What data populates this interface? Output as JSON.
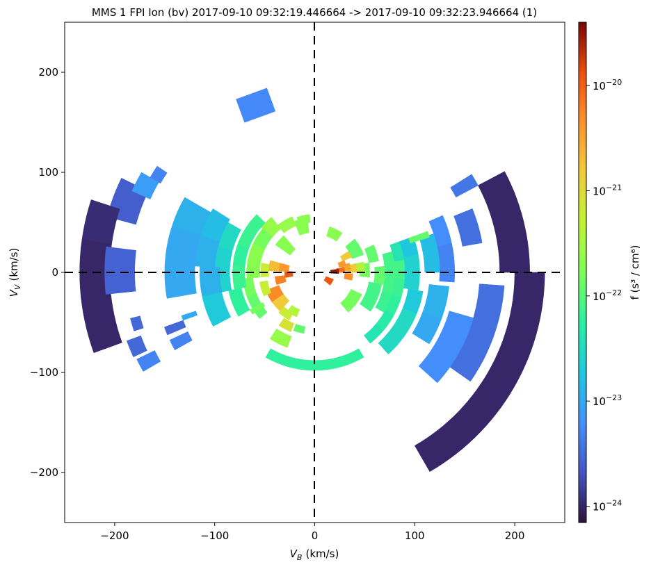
{
  "chart_data": {
    "type": "polar-distribution",
    "title": "MMS 1 FPI Ion (bv) 2017-09-10 09:32:19.446664 -> 2017-09-10 09:32:23.946664 (1)",
    "xlabel": {
      "base": "V",
      "sub": "B",
      "unit": "(km/s)"
    },
    "ylabel": {
      "base": "V",
      "sub": "V",
      "unit": "(km/s)"
    },
    "xlim": [
      -250,
      250
    ],
    "ylim": [
      -250,
      250
    ],
    "xticks": [
      {
        "value": -200,
        "label": "−200"
      },
      {
        "value": -100,
        "label": "−100"
      },
      {
        "value": 0,
        "label": "0"
      },
      {
        "value": 100,
        "label": "100"
      },
      {
        "value": 200,
        "label": "200"
      }
    ],
    "yticks": [
      {
        "value": 200,
        "label": "200"
      },
      {
        "value": 100,
        "label": "100"
      },
      {
        "value": 0,
        "label": "0"
      },
      {
        "value": -100,
        "label": "−100"
      },
      {
        "value": -200,
        "label": "−200"
      }
    ],
    "zero_lines": true,
    "colorbar": {
      "label": "f (s³ / cm⁶)",
      "scale": "log",
      "range": [
        7e-25,
        4e-20
      ],
      "ticks": [
        {
          "value": 1e-24,
          "base": "10",
          "exp": "−24"
        },
        {
          "value": 1e-23,
          "base": "10",
          "exp": "−23"
        },
        {
          "value": 1e-22,
          "base": "10",
          "exp": "−22"
        },
        {
          "value": 1e-21,
          "base": "10",
          "exp": "−21"
        },
        {
          "value": 1e-20,
          "base": "10",
          "exp": "−20"
        }
      ]
    },
    "cells": [
      {
        "r": [
          200,
          230
        ],
        "theta": [
          -60,
          -30
        ],
        "f": 1e-24
      },
      {
        "r": [
          200,
          230
        ],
        "theta": [
          -30,
          0
        ],
        "f": 1e-24
      },
      {
        "r": [
          185,
          215
        ],
        "theta": [
          0,
          28
        ],
        "f": 1e-24
      },
      {
        "r": [
          185,
          215
        ],
        "theta": [
          154,
          165
        ],
        "f": 2.5e-24
      },
      {
        "r": [
          205,
          235
        ],
        "theta": [
          162,
          172
        ],
        "f": 1.1e-24
      },
      {
        "r": [
          205,
          235
        ],
        "theta": [
          172,
          186
        ],
        "f": 1e-24
      },
      {
        "r": [
          205,
          235
        ],
        "theta": [
          186,
          200
        ],
        "f": 1e-24
      },
      {
        "r": [
          180,
          210
        ],
        "theta": [
          173,
          186
        ],
        "f": 2.7e-24
      },
      {
        "r": [
          165,
          190
        ],
        "theta": [
          -35,
          -18
        ],
        "f": 3.5e-24
      },
      {
        "r": [
          165,
          190
        ],
        "theta": [
          -18,
          -4
        ],
        "f": 3.5e-24
      },
      {
        "r": [
          150,
          170
        ],
        "theta": [
          10,
          22
        ],
        "f": 3.5e-24
      },
      {
        "r": [
          140,
          165
        ],
        "theta": [
          -42,
          -30
        ],
        "f": 6e-24
      },
      {
        "r": [
          140,
          165
        ],
        "theta": [
          -30,
          -16
        ],
        "f": 6e-24
      },
      {
        "r": [
          125,
          140
        ],
        "theta": [
          -4,
          12
        ],
        "f": 5e-24
      },
      {
        "r": [
          125,
          140
        ],
        "theta": [
          12,
          24
        ],
        "f": 6e-24
      },
      {
        "r": [
          115,
          135
        ],
        "theta": [
          -32,
          -20
        ],
        "f": 1e-23
      },
      {
        "r": [
          115,
          135
        ],
        "theta": [
          -20,
          -6
        ],
        "f": 1.2e-23
      },
      {
        "r": [
          110,
          125
        ],
        "theta": [
          0,
          10
        ],
        "f": 1.5e-23
      },
      {
        "r": [
          110,
          125
        ],
        "theta": [
          10,
          18
        ],
        "f": 1.5e-23
      },
      {
        "r": [
          95,
          110
        ],
        "theta": [
          -48,
          -36
        ],
        "f": 3e-23
      },
      {
        "r": [
          95,
          110
        ],
        "theta": [
          -36,
          -22
        ],
        "f": 3e-23
      },
      {
        "r": [
          95,
          110
        ],
        "theta": [
          -22,
          -10
        ],
        "f": 2e-23
      },
      {
        "r": [
          90,
          105
        ],
        "theta": [
          -10,
          0
        ],
        "f": 2.5e-23
      },
      {
        "r": [
          90,
          105
        ],
        "theta": [
          0,
          10
        ],
        "f": 2.5e-23
      },
      {
        "r": [
          90,
          105
        ],
        "theta": [
          10,
          20
        ],
        "f": 1.8e-23
      },
      {
        "r": [
          80,
          90
        ],
        "theta": [
          -52,
          -40
        ],
        "f": 4e-23
      },
      {
        "r": [
          80,
          90
        ],
        "theta": [
          -40,
          -28
        ],
        "f": 5e-23
      },
      {
        "r": [
          80,
          90
        ],
        "theta": [
          -28,
          -16
        ],
        "f": 6e-23
      },
      {
        "r": [
          80,
          90
        ],
        "theta": [
          -16,
          -4
        ],
        "f": 7e-23
      },
      {
        "r": [
          80,
          90
        ],
        "theta": [
          -4,
          8
        ],
        "f": 8e-23
      },
      {
        "r": [
          80,
          90
        ],
        "theta": [
          8,
          20
        ],
        "f": 4e-23
      },
      {
        "r": [
          88,
          98
        ],
        "theta": [
          -120,
          -90
        ],
        "f": 6e-23
      },
      {
        "r": [
          88,
          98
        ],
        "theta": [
          -90,
          -60
        ],
        "f": 6e-23
      },
      {
        "r": [
          70,
          80
        ],
        "theta": [
          -30,
          -15
        ],
        "f": 7e-23
      },
      {
        "r": [
          70,
          80
        ],
        "theta": [
          -15,
          0
        ],
        "f": 8e-23
      },
      {
        "r": [
          70,
          80
        ],
        "theta": [
          0,
          15
        ],
        "f": 8e-23
      },
      {
        "r": [
          60,
          70
        ],
        "theta": [
          -10,
          5
        ],
        "f": 1.2e-22
      },
      {
        "r": [
          55,
          68
        ],
        "theta": [
          -35,
          -10
        ],
        "f": 8e-23
      },
      {
        "r": [
          55,
          65
        ],
        "theta": [
          10,
          25
        ],
        "f": 1.2e-22
      },
      {
        "r": [
          45,
          55
        ],
        "theta": [
          -5,
          10
        ],
        "f": 1.5e-22
      },
      {
        "r": [
          40,
          52
        ],
        "theta": [
          -50,
          -25
        ],
        "f": 1.5e-22
      },
      {
        "r": [
          40,
          52
        ],
        "theta": [
          20,
          40
        ],
        "f": 1.2e-22
      },
      {
        "r": [
          38,
          48
        ],
        "theta": [
          55,
          72
        ],
        "f": 2e-22
      },
      {
        "r": [
          40,
          50
        ],
        "theta": [
          0,
          12
        ],
        "f": 4e-22
      },
      {
        "r": [
          33,
          42
        ],
        "theta": [
          0,
          12
        ],
        "f": 1.5e-21
      },
      {
        "r": [
          28,
          36
        ],
        "theta": [
          3,
          15
        ],
        "f": 3e-21
      },
      {
        "r": [
          22,
          30
        ],
        "theta": [
          0,
          10
        ],
        "f": 8e-21
      },
      {
        "r": [
          16,
          24
        ],
        "theta": [
          -3,
          8
        ],
        "f": 3e-20
      },
      {
        "r": [
          30,
          40
        ],
        "theta": [
          22,
          32
        ],
        "f": 1.5e-21
      },
      {
        "r": [
          25,
          32
        ],
        "theta": [
          12,
          22
        ],
        "f": 4e-21
      },
      {
        "r": [
          30,
          38
        ],
        "theta": [
          -12,
          -2
        ],
        "f": 5e-21
      },
      {
        "r": [
          12,
          20
        ],
        "theta": [
          -40,
          -20
        ],
        "f": 1.2e-20
      },
      {
        "r": [
          30,
          48
        ],
        "theta": [
          130,
          145
        ],
        "f": 2e-22
      },
      {
        "r": [
          40,
          55
        ],
        "theta": [
          98,
          112
        ],
        "f": 2e-22
      },
      {
        "r": [
          50,
          60
        ],
        "theta": [
          112,
          128
        ],
        "f": 2.5e-22
      },
      {
        "r": [
          55,
          70
        ],
        "theta": [
          128,
          140
        ],
        "f": 2.5e-22
      },
      {
        "r": [
          50,
          58
        ],
        "theta": [
          95,
          108
        ],
        "f": 2e-22
      },
      {
        "r": [
          55,
          68
        ],
        "theta": [
          140,
          155
        ],
        "f": 1.5e-22
      },
      {
        "r": [
          55,
          68
        ],
        "theta": [
          155,
          170
        ],
        "f": 2e-22
      },
      {
        "r": [
          55,
          68
        ],
        "theta": [
          170,
          185
        ],
        "f": 2e-22
      },
      {
        "r": [
          62,
          72
        ],
        "theta": [
          185,
          200
        ],
        "f": 1.5e-22
      },
      {
        "r": [
          62,
          72
        ],
        "theta": [
          200,
          220
        ],
        "f": 1.2e-22
      },
      {
        "r": [
          70,
          82
        ],
        "theta": [
          135,
          160
        ],
        "f": 7e-23
      },
      {
        "r": [
          70,
          82
        ],
        "theta": [
          160,
          175
        ],
        "f": 6e-23
      },
      {
        "r": [
          70,
          82
        ],
        "theta": [
          175,
          192
        ],
        "f": 7e-23
      },
      {
        "r": [
          75,
          88
        ],
        "theta": [
          192,
          210
        ],
        "f": 6e-23
      },
      {
        "r": [
          85,
          100
        ],
        "theta": [
          150,
          165
        ],
        "f": 3e-23
      },
      {
        "r": [
          85,
          100
        ],
        "theta": [
          165,
          178
        ],
        "f": 2.5e-23
      },
      {
        "r": [
          85,
          100
        ],
        "theta": [
          178,
          192
        ],
        "f": 2.5e-23
      },
      {
        "r": [
          100,
          120
        ],
        "theta": [
          148,
          162
        ],
        "f": 1.5e-23
      },
      {
        "r": [
          100,
          120
        ],
        "theta": [
          162,
          177
        ],
        "f": 1.2e-23
      },
      {
        "r": [
          95,
          115
        ],
        "theta": [
          177,
          192
        ],
        "f": 1.2e-23
      },
      {
        "r": [
          95,
          115
        ],
        "theta": [
          192,
          208
        ],
        "f": 2e-23
      },
      {
        "r": [
          120,
          150
        ],
        "theta": [
          150,
          162
        ],
        "f": 1.2e-23
      },
      {
        "r": [
          120,
          150
        ],
        "theta": [
          162,
          177
        ],
        "f": 1e-23
      },
      {
        "r": [
          120,
          150
        ],
        "theta": [
          177,
          190
        ],
        "f": 1e-23
      },
      {
        "r": [
          38,
          52
        ],
        "theta": [
          200,
          215
        ],
        "f": 5e-21
      },
      {
        "r": [
          38,
          52
        ],
        "theta": [
          215,
          228
        ],
        "f": 1.5e-21
      },
      {
        "r": [
          30,
          40
        ],
        "theta": [
          186,
          198
        ],
        "f": 6e-21
      },
      {
        "r": [
          22,
          30
        ],
        "theta": [
          178,
          190
        ],
        "f": 1.2e-20
      },
      {
        "r": [
          26,
          36
        ],
        "theta": [
          165,
          178
        ],
        "f": 4e-21
      },
      {
        "r": [
          36,
          46
        ],
        "theta": [
          165,
          178
        ],
        "f": 2e-21
      },
      {
        "r": [
          46,
          54
        ],
        "theta": [
          170,
          185
        ],
        "f": 6e-22
      },
      {
        "r": [
          48,
          56
        ],
        "theta": [
          190,
          205
        ],
        "f": 6e-22
      },
      {
        "r": [
          40,
          48
        ],
        "theta": [
          235,
          248
        ],
        "f": 4e-22
      },
      {
        "r": [
          46,
          54
        ],
        "theta": [
          228,
          242
        ],
        "f": 6e-22
      },
      {
        "r": [
          55,
          64
        ],
        "theta": [
          236,
          248
        ],
        "f": 8e-22
      },
      {
        "r": [
          68,
          80
        ],
        "theta": [
          236,
          250
        ],
        "f": 2.5e-22
      },
      {
        "r": [
          55,
          62
        ],
        "theta": [
          250,
          260
        ],
        "f": 1.2e-22
      }
    ],
    "patches": [
      {
        "x": -59,
        "y": 167,
        "w": 33,
        "h": 25,
        "rot": -20,
        "f": 5.5e-24
      },
      {
        "x": -160,
        "y": 0,
        "w": 0,
        "h": 0,
        "rot": 0,
        "f": 0
      }
    ],
    "streaks": [
      {
        "r": [
          180,
          200
        ],
        "theta": [
          150,
          156
        ],
        "f": 8e-24
      },
      {
        "r": [
          178,
          190
        ],
        "theta": [
          146,
          150
        ],
        "f": 5e-24
      },
      {
        "r": [
          160,
          185
        ],
        "theta": [
          28,
          32
        ],
        "f": 4e-24
      },
      {
        "r": [
          100,
          120
        ],
        "theta": [
          17,
          20
        ],
        "f": 1.2e-22
      },
      {
        "r": [
          180,
          190
        ],
        "theta": [
          194,
          198
        ],
        "f": 3e-24
      },
      {
        "r": [
          185,
          200
        ],
        "theta": [
          200,
          205
        ],
        "f": 3e-24
      },
      {
        "r": [
          178,
          198
        ],
        "theta": [
          206,
          210
        ],
        "f": 5e-24
      },
      {
        "r": [
          140,
          160
        ],
        "theta": [
          205,
          209
        ],
        "f": 5e-24
      },
      {
        "r": [
          140,
          160
        ],
        "theta": [
          200,
          203
        ],
        "f": 3e-24
      },
      {
        "r": [
          125,
          140
        ],
        "theta": [
          198,
          200
        ],
        "f": 1e-23
      },
      {
        "r": [
          60,
          75
        ],
        "theta": [
          210,
          214
        ],
        "f": 1.5e-22
      }
    ]
  }
}
